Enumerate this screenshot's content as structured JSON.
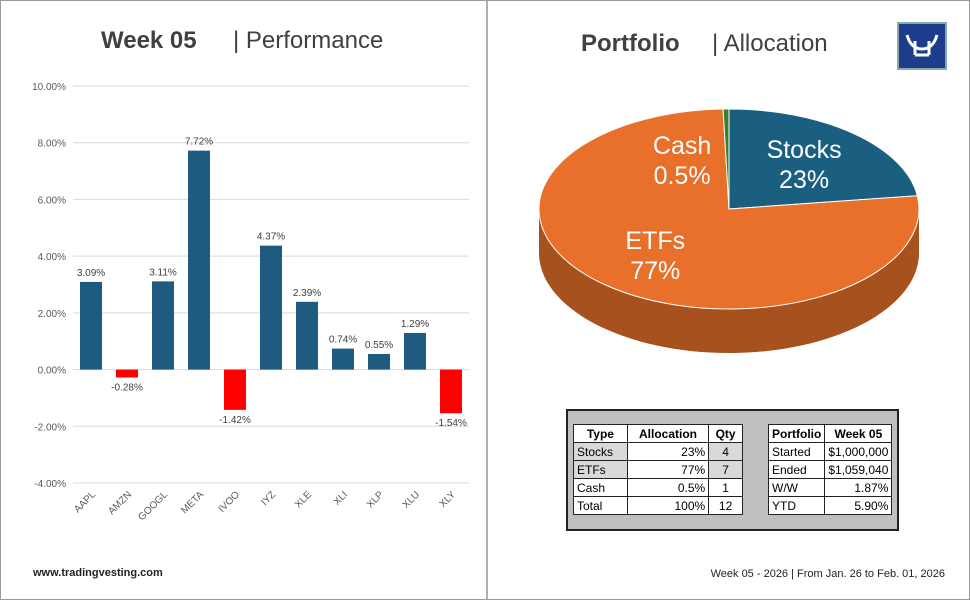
{
  "chart_data": [
    {
      "type": "bar",
      "title": "Week 05",
      "subtitle": "| Performance",
      "categories": [
        "AAPL",
        "AMZN",
        "GOOGL",
        "META",
        "IVOO",
        "IYZ",
        "XLE",
        "XLI",
        "XLP",
        "XLU",
        "XLY"
      ],
      "values": [
        3.09,
        -0.28,
        3.11,
        7.72,
        -1.42,
        4.37,
        2.39,
        0.74,
        0.55,
        1.29,
        -1.54
      ],
      "value_labels": [
        "3.09%",
        "-0.28%",
        "3.11%",
        "7.72%",
        "-1.42%",
        "4.37%",
        "2.39%",
        "0.74%",
        "0.55%",
        "1.29%",
        "-1.54%"
      ],
      "color": "#1f5b80",
      "negative_color": "#ff0000",
      "ylim": [
        -4,
        10
      ],
      "yticks": [
        {
          "value": -4,
          "label": "-4.00%"
        },
        {
          "value": -2,
          "label": "-2.00%"
        },
        {
          "value": 0,
          "label": "0.00%"
        },
        {
          "value": 2,
          "label": "2.00%"
        },
        {
          "value": 4,
          "label": "4.00%"
        },
        {
          "value": 6,
          "label": "6.00%"
        },
        {
          "value": 8,
          "label": "8.00%"
        },
        {
          "value": 10,
          "label": "10.00%"
        }
      ],
      "grid": true
    },
    {
      "type": "pie",
      "title": "Portfolio",
      "subtitle": "| Allocation",
      "categories": [
        "Stocks",
        "ETFs",
        "Cash"
      ],
      "values": [
        23,
        77,
        0.5
      ],
      "value_labels": [
        "23%",
        "77%",
        "0.5%"
      ],
      "colors": [
        "#1a5e80",
        "#e8702a",
        "#3d7d2e"
      ]
    }
  ],
  "allocation_table": {
    "header": [
      "Type",
      "Allocation",
      "Qty"
    ],
    "rows": [
      [
        "Stocks",
        "23%",
        "4"
      ],
      [
        "ETFs",
        "77%",
        "7"
      ],
      [
        "Cash",
        "0.5%",
        "1"
      ],
      [
        "Total",
        "100%",
        "12"
      ]
    ]
  },
  "portfolio_table": {
    "header": [
      "Portfolio",
      "Week 05"
    ],
    "rows": [
      [
        "Started",
        "$1,000,000"
      ],
      [
        "Ended",
        "$1,059,040"
      ],
      [
        "W/W",
        "1.87%"
      ],
      [
        "YTD",
        "5.90%"
      ]
    ]
  },
  "footer": {
    "website": "www.tradingvesting.com",
    "period": "Week 05 - 2026 | From Jan. 26 to Feb. 01, 2026"
  }
}
